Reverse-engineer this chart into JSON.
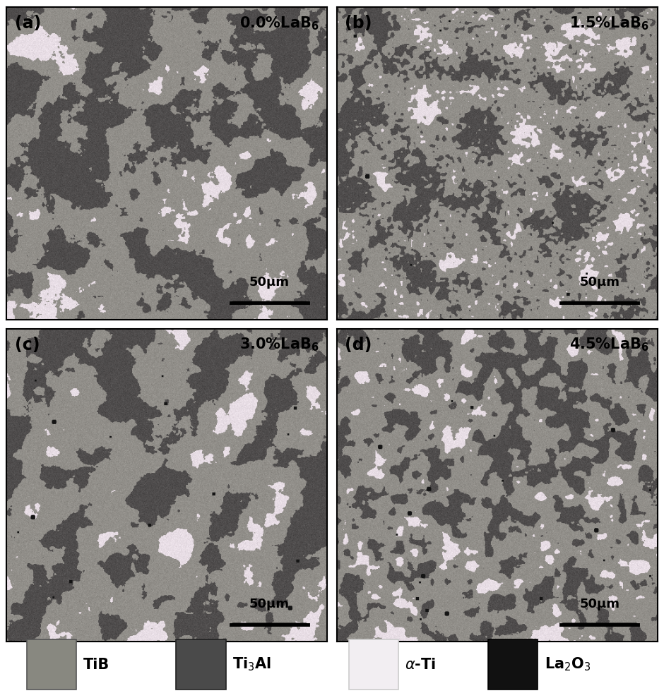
{
  "panels": [
    {
      "label": "(a)",
      "concentration": "0.0% LaB",
      "sub": "6",
      "seed": 1001
    },
    {
      "label": "(b)",
      "concentration": "1.5% LaB",
      "sub": "6",
      "seed": 1002
    },
    {
      "label": "(c)",
      "concentration": "3.0% LaB",
      "sub": "6",
      "seed": 1003
    },
    {
      "label": "(d)",
      "concentration": "4.5% LaB",
      "sub": "6",
      "seed": 1004
    }
  ],
  "legend_items": [
    {
      "color": "#888880",
      "label": "TiB",
      "edge": "#555555"
    },
    {
      "color": "#4A4A4A",
      "label": "Ti₃Al",
      "edge": "#222222"
    },
    {
      "color": "#F2EEF2",
      "label": "α-Ti",
      "edge": "#cccccc"
    },
    {
      "color": "#111111",
      "label": "La₂O₃",
      "edge": "#000000"
    }
  ],
  "scalebar_text": "50μm",
  "background_color": "#ffffff",
  "fig_width": 9.4,
  "fig_height": 9.89,
  "dpi": 100,
  "tib_gray": 0.56,
  "ti3al_gray": 0.3,
  "alpha_ti_r": 0.91,
  "alpha_ti_g": 0.87,
  "alpha_ti_b": 0.9,
  "la2o3_gray": 0.08
}
